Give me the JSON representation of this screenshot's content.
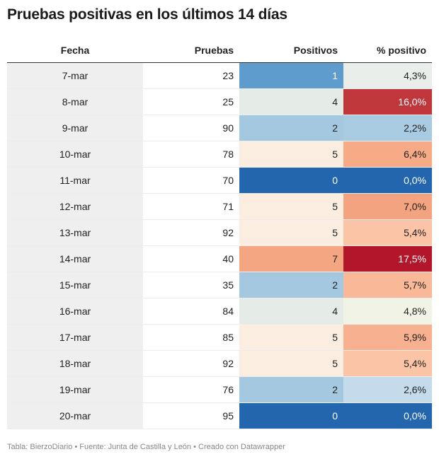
{
  "title": "Pruebas positivas en los últimos 14 días",
  "footer": "Tabla: BierzoDiario • Fuente: Junta de Castilla y León • Creado con Datawrapper",
  "chart_data": {
    "type": "table",
    "columns": [
      "Fecha",
      "Pruebas",
      "Positivos",
      "% positivo"
    ],
    "rows": [
      {
        "fecha": "7-mar",
        "pruebas": "23",
        "positivos": "1",
        "pct": "4,3%",
        "pos_color": "#5e9cce",
        "pos_text": "#ffffff",
        "pct_color": "#e9eeea",
        "pct_text": "#222222"
      },
      {
        "fecha": "8-mar",
        "pruebas": "25",
        "positivos": "4",
        "pct": "16,0%",
        "pos_color": "#e5ece8",
        "pos_text": "#222222",
        "pct_color": "#c0373b",
        "pct_text": "#ffffff"
      },
      {
        "fecha": "9-mar",
        "pruebas": "90",
        "positivos": "2",
        "pct": "2,2%",
        "pos_color": "#a3c8e0",
        "pos_text": "#222222",
        "pct_color": "#a8cbe2",
        "pct_text": "#222222"
      },
      {
        "fecha": "10-mar",
        "pruebas": "78",
        "positivos": "5",
        "pct": "6,4%",
        "pos_color": "#fbeee1",
        "pos_text": "#222222",
        "pct_color": "#f7aa86",
        "pct_text": "#222222"
      },
      {
        "fecha": "11-mar",
        "pruebas": "70",
        "positivos": "0",
        "pct": "0,0%",
        "pos_color": "#2366ae",
        "pos_text": "#ffffff",
        "pct_color": "#2366ae",
        "pct_text": "#ffffff"
      },
      {
        "fecha": "12-mar",
        "pruebas": "71",
        "positivos": "5",
        "pct": "7,0%",
        "pos_color": "#fbeee1",
        "pos_text": "#222222",
        "pct_color": "#f4a380",
        "pct_text": "#222222"
      },
      {
        "fecha": "13-mar",
        "pruebas": "92",
        "positivos": "5",
        "pct": "5,4%",
        "pos_color": "#fbeee1",
        "pos_text": "#222222",
        "pct_color": "#fbc4a6",
        "pct_text": "#222222"
      },
      {
        "fecha": "14-mar",
        "pruebas": "40",
        "positivos": "7",
        "pct": "17,5%",
        "pos_color": "#f4a582",
        "pos_text": "#222222",
        "pct_color": "#b3162b",
        "pct_text": "#ffffff"
      },
      {
        "fecha": "15-mar",
        "pruebas": "35",
        "positivos": "2",
        "pct": "5,7%",
        "pos_color": "#a3c8e0",
        "pos_text": "#222222",
        "pct_color": "#f9b897",
        "pct_text": "#222222"
      },
      {
        "fecha": "16-mar",
        "pruebas": "84",
        "positivos": "4",
        "pct": "4,8%",
        "pos_color": "#e5ece8",
        "pos_text": "#222222",
        "pct_color": "#f2f3e7",
        "pct_text": "#222222"
      },
      {
        "fecha": "17-mar",
        "pruebas": "85",
        "positivos": "5",
        "pct": "5,9%",
        "pos_color": "#fbeee1",
        "pos_text": "#222222",
        "pct_color": "#f7b090",
        "pct_text": "#222222"
      },
      {
        "fecha": "18-mar",
        "pruebas": "92",
        "positivos": "5",
        "pct": "5,4%",
        "pos_color": "#fbeee1",
        "pos_text": "#222222",
        "pct_color": "#fbc4a6",
        "pct_text": "#222222"
      },
      {
        "fecha": "19-mar",
        "pruebas": "76",
        "positivos": "2",
        "pct": "2,6%",
        "pos_color": "#a3c8e0",
        "pos_text": "#222222",
        "pct_color": "#c3dbea",
        "pct_text": "#222222"
      },
      {
        "fecha": "20-mar",
        "pruebas": "95",
        "positivos": "0",
        "pct": "0,0%",
        "pos_color": "#2366ae",
        "pos_text": "#ffffff",
        "pct_color": "#2366ae",
        "pct_text": "#ffffff"
      }
    ]
  }
}
